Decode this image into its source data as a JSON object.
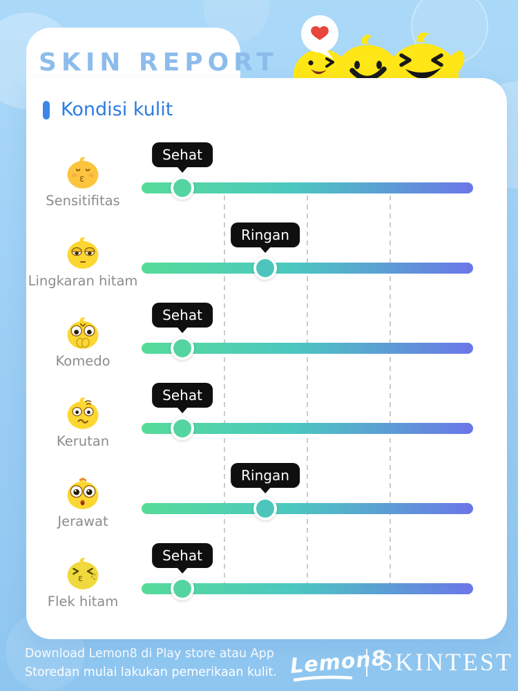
{
  "header": {
    "title": "SKIN REPORT"
  },
  "mascots": {
    "speech_bubble_icon": "heart-speech-bubble",
    "heart_color": "#e8453c",
    "lemon_color": "#ffe616",
    "characters": [
      "winking-lemon",
      "smiling-lemon",
      "laughing-lemon"
    ]
  },
  "section": {
    "title": "Kondisi kulit",
    "accent_color": "#2b7ce2"
  },
  "slider": {
    "track_gradient": [
      "#56db9a",
      "#4cc8c0",
      "#6b76e8"
    ],
    "gridline_positions_pct": [
      25,
      50,
      75
    ]
  },
  "rows": [
    {
      "label": "Sensitifitas",
      "status": "Sehat",
      "value_pct": 12.3,
      "handle_color": "#54d5a0",
      "emoji": "kissing-lemon-emoji"
    },
    {
      "label": "Lingkaran hitam",
      "status": "Ringan",
      "value_pct": 37.3,
      "handle_color": "#4cc6bd",
      "emoji": "tired-eyes-lemon-emoji"
    },
    {
      "label": "Komedo",
      "status": "Sehat",
      "value_pct": 12.3,
      "handle_color": "#54d5a0",
      "emoji": "shocked-lemon-emoji"
    },
    {
      "label": "Kerutan",
      "status": "Sehat",
      "value_pct": 12.3,
      "handle_color": "#54d5a0",
      "emoji": "worried-lemon-emoji"
    },
    {
      "label": "Jerawat",
      "status": "Ringan",
      "value_pct": 37.3,
      "handle_color": "#4cc6bd",
      "emoji": "surprised-lemon-emoji"
    },
    {
      "label": "Flek hitam",
      "status": "Sehat",
      "value_pct": 12.3,
      "handle_color": "#54d5a0",
      "emoji": "kissy-freckles-lemon-emoji"
    }
  ],
  "footer": {
    "line1": "Download Lemon8 di Play store atau App",
    "line2": "Storedan mulai lakukan pemerikaan kulit.",
    "brand": "Lemon8",
    "product": "SKINTEST"
  }
}
